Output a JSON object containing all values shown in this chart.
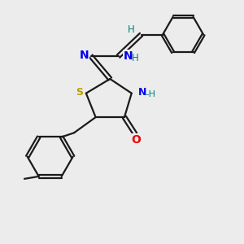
{
  "bg_color": "#ececec",
  "bond_color": "#1a1a1a",
  "S_color": "#b8a000",
  "N_color": "#0000ee",
  "O_color": "#ee0000",
  "H_color": "#008080",
  "line_width": 1.6,
  "figsize": [
    3.0,
    3.0
  ],
  "dpi": 100,
  "xlim": [
    0,
    10
  ],
  "ylim": [
    0,
    10
  ]
}
